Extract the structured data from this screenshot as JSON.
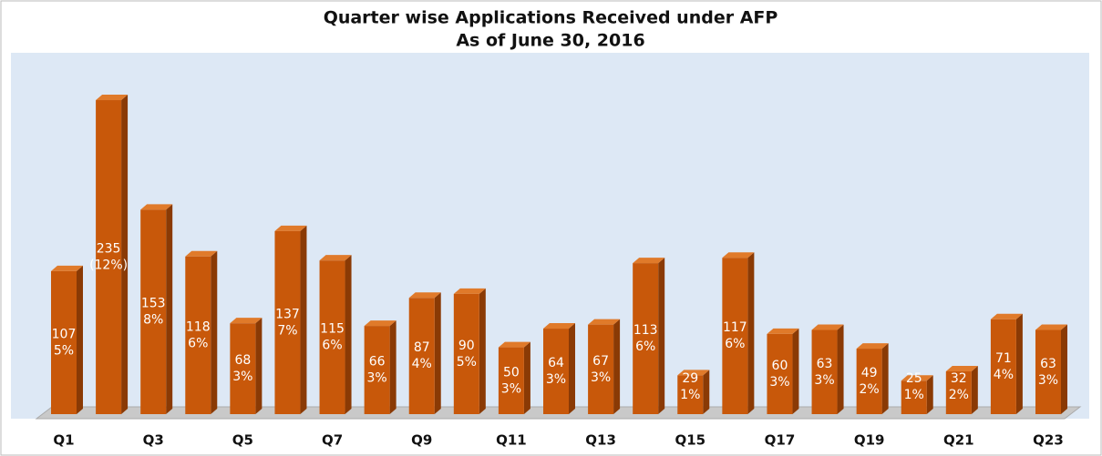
{
  "chart_data": {
    "type": "bar",
    "title": "Quarter wise Applications Received under AFP",
    "subtitle": "As of June 30, 2016",
    "categories": [
      "Q1",
      null,
      "Q3",
      null,
      "Q5",
      null,
      "Q7",
      null,
      "Q9",
      null,
      "Q11",
      null,
      "Q13",
      null,
      "Q15",
      null,
      "Q17",
      null,
      "Q19",
      null,
      "Q21",
      null,
      "Q23"
    ],
    "values": [
      107,
      235,
      153,
      118,
      68,
      137,
      115,
      66,
      87,
      90,
      50,
      64,
      67,
      113,
      29,
      117,
      60,
      63,
      49,
      25,
      32,
      71,
      63
    ],
    "percent_labels": [
      "5%",
      "(12%)",
      "8%",
      "6%",
      "3%",
      "7%",
      "6%",
      "3%",
      "4%",
      "5%",
      "3%",
      "3%",
      "3%",
      "6%",
      "1%",
      "6%",
      "3%",
      "3%",
      "2%",
      "1%",
      "2%",
      "4%",
      "3%"
    ],
    "color": "#c8580a",
    "ylim": [
      0,
      250
    ]
  }
}
